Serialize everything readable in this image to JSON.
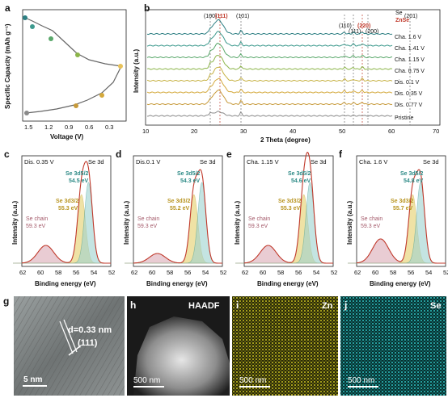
{
  "panels": {
    "a": {
      "letter": "a",
      "ylabel": "Specific Capacity (mAh g⁻¹)",
      "xlabel": "Voltage (V)",
      "xticks": [
        "1.5",
        "1.2",
        "0.9",
        "0.6",
        "0.3"
      ]
    },
    "b": {
      "letter": "b",
      "ylabel": "Intensity (a.u.)",
      "xlabel": "2 Theta (degree)",
      "xticks": [
        "10",
        "20",
        "30",
        "40",
        "50",
        "60",
        "70"
      ],
      "legend_se": "Se",
      "legend_znse": "ZnSe",
      "peak_labels": [
        "(100)",
        "(111)",
        "(101)",
        "(110)",
        "(111)",
        "(220)",
        "(200)",
        "(201)"
      ],
      "traces": [
        {
          "label": "Cha. 1.6 V",
          "color": "#2d7f83"
        },
        {
          "label": "Cha. 1.41 V",
          "color": "#3e9a8e"
        },
        {
          "label": "Cha. 1.15 V",
          "color": "#5aa86b"
        },
        {
          "label": "Cha. 0.75 V",
          "color": "#8cb54a"
        },
        {
          "label": "Dis. 0.1 V",
          "color": "#c7b245"
        },
        {
          "label": "Dis. 0.35 V",
          "color": "#d4a93d"
        },
        {
          "label": "Dis. 0.77 V",
          "color": "#c79a3a"
        },
        {
          "label": "Pristine",
          "color": "#8a8a8a"
        }
      ]
    },
    "xps": {
      "ylabel": "Intensity (a.u.)",
      "xlabel": "Binding energy (eV)",
      "xticks": [
        "62",
        "60",
        "58",
        "56",
        "54",
        "52"
      ],
      "region": "Se 3d",
      "chain_label": "Se chain",
      "chain_ev": "59.3 eV",
      "se52_label": "Se 3d5/2",
      "se32_label": "Se 3d3/2",
      "subpanels": [
        {
          "letter": "c",
          "condition": "Dis. 0.35 V",
          "ev52": "54.5 eV",
          "ev32": "55.3 eV"
        },
        {
          "letter": "d",
          "condition": "Dis.0.1 V",
          "ev52": "54.3 eV",
          "ev32": "55.2 eV"
        },
        {
          "letter": "e",
          "condition": "Cha. 1.15 V",
          "ev52": "54.6 eV",
          "ev32": "55.3 eV"
        },
        {
          "letter": "f",
          "condition": "Cha. 1.6 V",
          "ev52": "54.8 eV",
          "ev32": "55.7 eV"
        }
      ]
    },
    "g": {
      "letter": "g",
      "d_spacing": "d=0.33 nm",
      "plane": "(111)",
      "scale": "5 nm"
    },
    "h": {
      "letter": "h",
      "title": "HAADF",
      "scale": "500 nm"
    },
    "i": {
      "letter": "i",
      "title": "Zn",
      "scale": "500 nm"
    },
    "j": {
      "letter": "j",
      "title": "Se",
      "scale": "500 nm"
    }
  },
  "chart_data": [
    {
      "type": "line",
      "xlabel": "Voltage (V)",
      "ylabel": "Specific Capacity (mAh g⁻¹)",
      "series": [
        {
          "x": [
            1.6,
            1.5,
            1.35,
            1.2,
            0.95,
            0.8,
            0.6,
            0.3,
            0.1
          ],
          "y": [
            0.92,
            0.88,
            0.78,
            0.72,
            0.62,
            0.55,
            0.48,
            0.45,
            0.42
          ]
        },
        {
          "x": [
            0.1,
            0.25,
            0.45,
            0.7,
            0.9,
            1.2,
            1.5
          ],
          "y": [
            0.42,
            0.3,
            0.22,
            0.16,
            0.12,
            0.08,
            0.04
          ]
        }
      ],
      "markers_x": [
        1.55,
        1.35,
        1.18,
        0.88,
        0.7,
        0.35,
        0.1
      ]
    }
  ]
}
